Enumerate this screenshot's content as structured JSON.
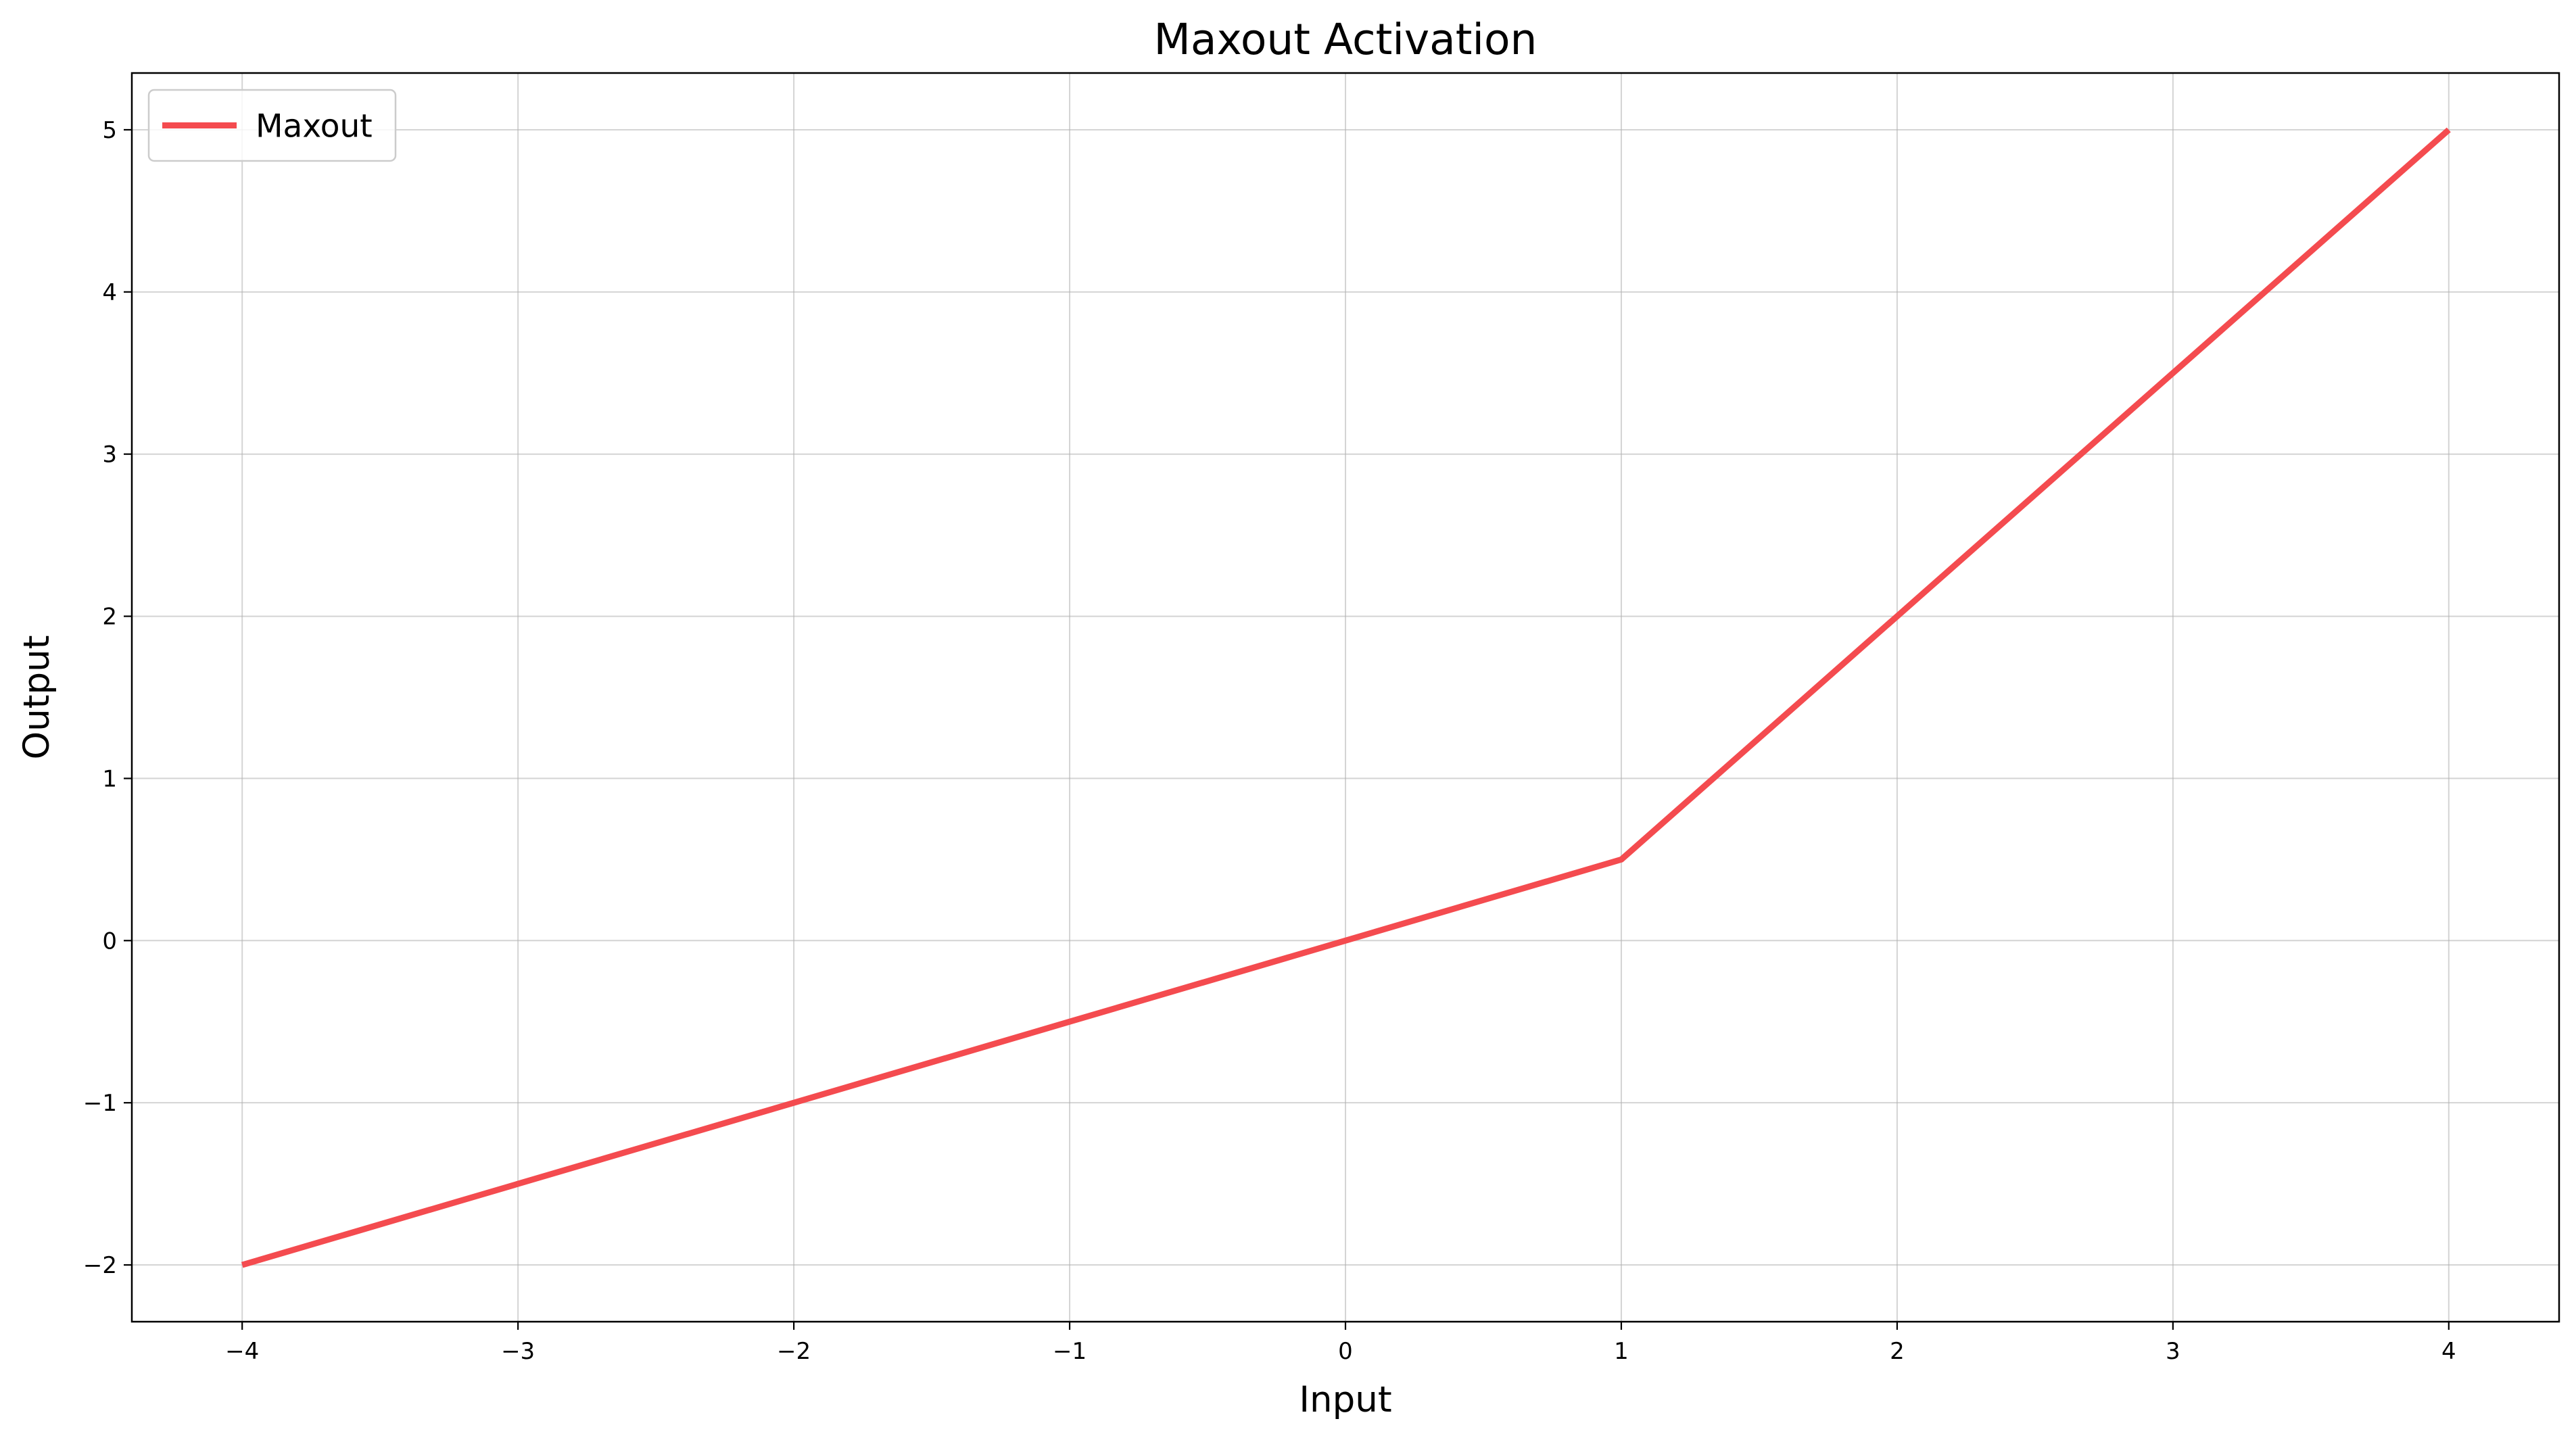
{
  "chart_data": {
    "type": "line",
    "title": "Maxout Activation",
    "xlabel": "Input",
    "ylabel": "Output",
    "xlim": [
      -4.4,
      4.4
    ],
    "ylim": [
      -2.35,
      5.35
    ],
    "xticks": [
      -4,
      -3,
      -2,
      -1,
      0,
      1,
      2,
      3,
      4
    ],
    "xtick_labels": [
      "−4",
      "−3",
      "−2",
      "−1",
      "0",
      "1",
      "2",
      "3",
      "4"
    ],
    "yticks": [
      -2,
      -1,
      0,
      1,
      2,
      3,
      4,
      5
    ],
    "ytick_labels": [
      "−2",
      "−1",
      "0",
      "1",
      "2",
      "3",
      "4",
      "5"
    ],
    "grid": true,
    "legend_position": "top-left",
    "series": [
      {
        "name": "Maxout",
        "color": "#f44b4f",
        "x": [
          -4,
          -3,
          -2,
          -1,
          0,
          1,
          2,
          3,
          4
        ],
        "y": [
          -2,
          -1.5,
          -1,
          -0.5,
          0,
          0.5,
          2,
          3.5,
          5
        ]
      }
    ]
  }
}
